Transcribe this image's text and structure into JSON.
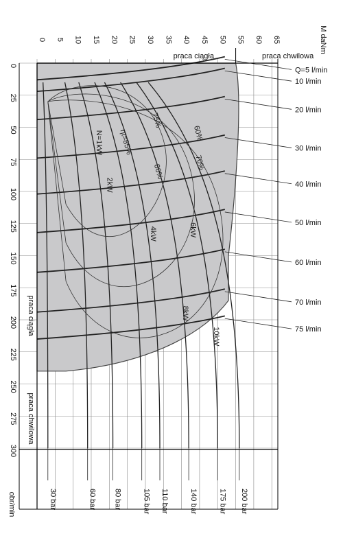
{
  "chart_data": {
    "type": "line",
    "title": "",
    "top_axis": {
      "label": "M daNm",
      "ticks": [
        "0",
        "5",
        "10",
        "15",
        "20",
        "25",
        "30",
        "35",
        "40",
        "45",
        "50",
        "55",
        "60",
        "65"
      ],
      "range": [
        0,
        65
      ]
    },
    "left_axis": {
      "label": "obr/min",
      "ticks": [
        "0",
        "25",
        "50",
        "75",
        "100",
        "125",
        "150",
        "175",
        "200",
        "225",
        "250",
        "275",
        "300"
      ],
      "range": [
        0,
        320
      ]
    },
    "top_annotations": {
      "continuous": "praca ciągła",
      "intermittent": "praca chwilowa"
    },
    "side_annotations": {
      "continuous": "praca ciągła",
      "intermittent": "praca chwilowa"
    },
    "flow_series": [
      {
        "name": "Q=5 l/min",
        "speed": 5
      },
      {
        "name": "10 l/min",
        "speed": 14
      },
      {
        "name": "20 l/min",
        "speed": 36
      },
      {
        "name": "30 l/min",
        "speed": 66
      },
      {
        "name": "40 l/min",
        "speed": 94
      },
      {
        "name": "50 l/min",
        "speed": 124
      },
      {
        "name": "60 l/min",
        "speed": 155
      },
      {
        "name": "70 l/min",
        "speed": 186
      },
      {
        "name": "75 l/min",
        "speed": 207
      }
    ],
    "pressure_series": [
      {
        "name": "30 bar",
        "torque": 3
      },
      {
        "name": "60 bar",
        "torque": 14
      },
      {
        "name": "80 bar",
        "torque": 21
      },
      {
        "name": "105 bar",
        "torque": 29
      },
      {
        "name": "110 bar",
        "torque": 34
      },
      {
        "name": "140 bar",
        "torque": 42
      },
      {
        "name": "175 bar",
        "torque": 50
      },
      {
        "name": "200 bar",
        "torque": 56
      }
    ],
    "power_labels": [
      {
        "name": "N=1kW",
        "torque": 16.5,
        "speed": 62
      },
      {
        "name": "2kW",
        "torque": 19.5,
        "speed": 95
      },
      {
        "name": "4kW",
        "torque": 31.5,
        "speed": 133
      },
      {
        "name": "6kW",
        "torque": 42.5,
        "speed": 130
      },
      {
        "name": "8kW",
        "torque": 40.5,
        "speed": 195
      },
      {
        "name": "10kW",
        "torque": 49,
        "speed": 213
      }
    ],
    "efficiency_labels": [
      {
        "name": "ηt=85%",
        "torque": 24,
        "speed": 62
      },
      {
        "name": "75%",
        "torque": 32.5,
        "speed": 45
      },
      {
        "name": "80%",
        "torque": 33,
        "speed": 85
      },
      {
        "name": "60%",
        "torque": 44,
        "speed": 55
      },
      {
        "name": "70%",
        "torque": 44.5,
        "speed": 78
      }
    ],
    "continuous_region": {
      "max_torque": 52,
      "max_speed": 240
    },
    "intermittent_region": {
      "max_torque": 65,
      "max_speed": 300
    }
  }
}
